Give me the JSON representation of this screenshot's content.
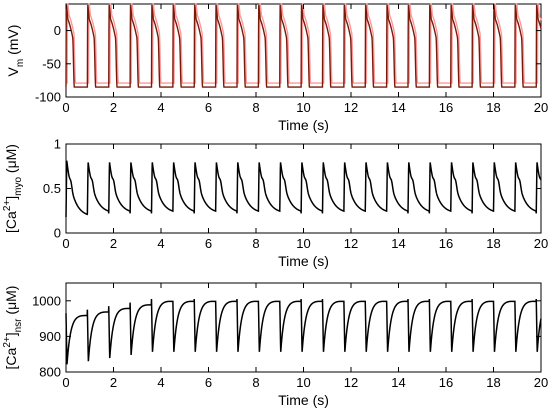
{
  "chart_data": [
    {
      "type": "line",
      "xlabel": "Time (s)",
      "ylabel": {
        "main": "V",
        "sub": "m",
        "unit": " (mV)"
      },
      "xlim": [
        0,
        20
      ],
      "ylim": [
        -100,
        40
      ],
      "x_ticks": [
        "0",
        "2",
        "4",
        "6",
        "8",
        "10",
        "12",
        "14",
        "16",
        "18",
        "20"
      ],
      "y_ticks": [
        "-100",
        "-50",
        "0"
      ],
      "y_tick_values": [
        -100,
        -50,
        0
      ],
      "grid": false,
      "trace_colors": [
        "#ff9999",
        "#7a1a0a"
      ],
      "waveform": {
        "period_s": 0.9,
        "beats": 22,
        "rest": -85,
        "peak": 40,
        "plateau": 20,
        "duration_s": 0.28
      }
    },
    {
      "type": "line",
      "xlabel": "Time (s)",
      "ylabel": {
        "main": "[Ca",
        "sup": "2+",
        "close": "]",
        "sub": "myo",
        "unit": " (μM)"
      },
      "xlim": [
        0,
        20
      ],
      "ylim": [
        0,
        1
      ],
      "x_ticks": [
        "0",
        "2",
        "4",
        "6",
        "8",
        "10",
        "12",
        "14",
        "16",
        "18",
        "20"
      ],
      "y_ticks": [
        "0",
        "0.5",
        "1"
      ],
      "y_tick_values": [
        0,
        0.5,
        1
      ],
      "grid": false,
      "trace_colors": [
        "#000000"
      ],
      "waveform": {
        "period_s": 0.9,
        "beats": 22,
        "baseline": 0.22,
        "peak": 0.8,
        "first_peak": 0.82
      }
    },
    {
      "type": "line",
      "xlabel": "Time (s)",
      "ylabel": {
        "main": "[Ca",
        "sup": "2+",
        "close": "]",
        "sub": "nsr",
        "unit": " (μM)"
      },
      "xlim": [
        0,
        20
      ],
      "ylim": [
        800,
        1050
      ],
      "x_ticks": [
        "0",
        "2",
        "4",
        "6",
        "8",
        "10",
        "12",
        "14",
        "16",
        "18",
        "20"
      ],
      "y_ticks": [
        "800",
        "900",
        "1000"
      ],
      "y_tick_values": [
        800,
        900,
        1000
      ],
      "grid": false,
      "trace_colors": [
        "#000000"
      ],
      "waveform": {
        "period_s": 0.9,
        "beats": 22,
        "min_start": 820,
        "min_steady": 855,
        "max_start": 965,
        "max_steady": 1005
      }
    }
  ]
}
